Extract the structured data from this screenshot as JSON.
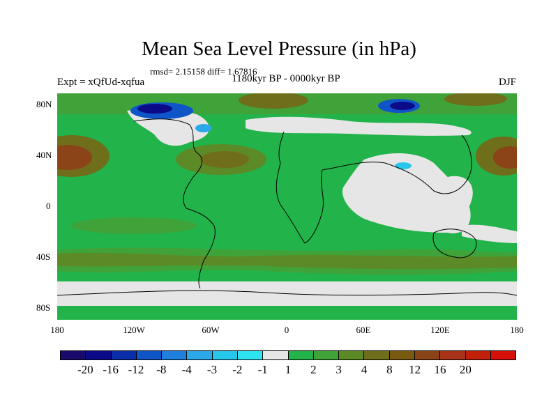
{
  "title": "Mean Sea Level Pressure (in hPa)",
  "stats": "rmsd= 2.15158 diff= 1.67816",
  "subtitle": "1180kyr BP - 0000kyr BP",
  "left_label": "Expt = xQfUd-xqfua",
  "right_label": "DJF",
  "map": {
    "projection": "cylindrical-equidistant",
    "lon_range": [
      -180,
      180
    ],
    "lat_range": [
      -90,
      90
    ],
    "y_ticks": [
      "80N",
      "40N",
      "0",
      "40S",
      "80S"
    ],
    "x_ticks": [
      "180",
      "120W",
      "60W",
      "0",
      "60E",
      "120E",
      "180"
    ],
    "coastlines": true
  },
  "colorbar": {
    "colors": [
      "#1a0a6b",
      "#0b0b8a",
      "#0a2ea8",
      "#0f55c8",
      "#1f7fdc",
      "#2aa8e8",
      "#26c7ea",
      "#2ee3f0",
      "#e6e6e6",
      "#22b34a",
      "#3fa33a",
      "#5c8a26",
      "#6f6e1a",
      "#7a5a10",
      "#8a4418",
      "#a83218",
      "#c2200a",
      "#d61008"
    ],
    "labels": [
      "-20",
      "-16",
      "-12",
      "-8",
      "-4",
      "-3",
      "-2",
      "-1",
      "1",
      "2",
      "3",
      "4",
      "8",
      "12",
      "16",
      "20"
    ]
  }
}
